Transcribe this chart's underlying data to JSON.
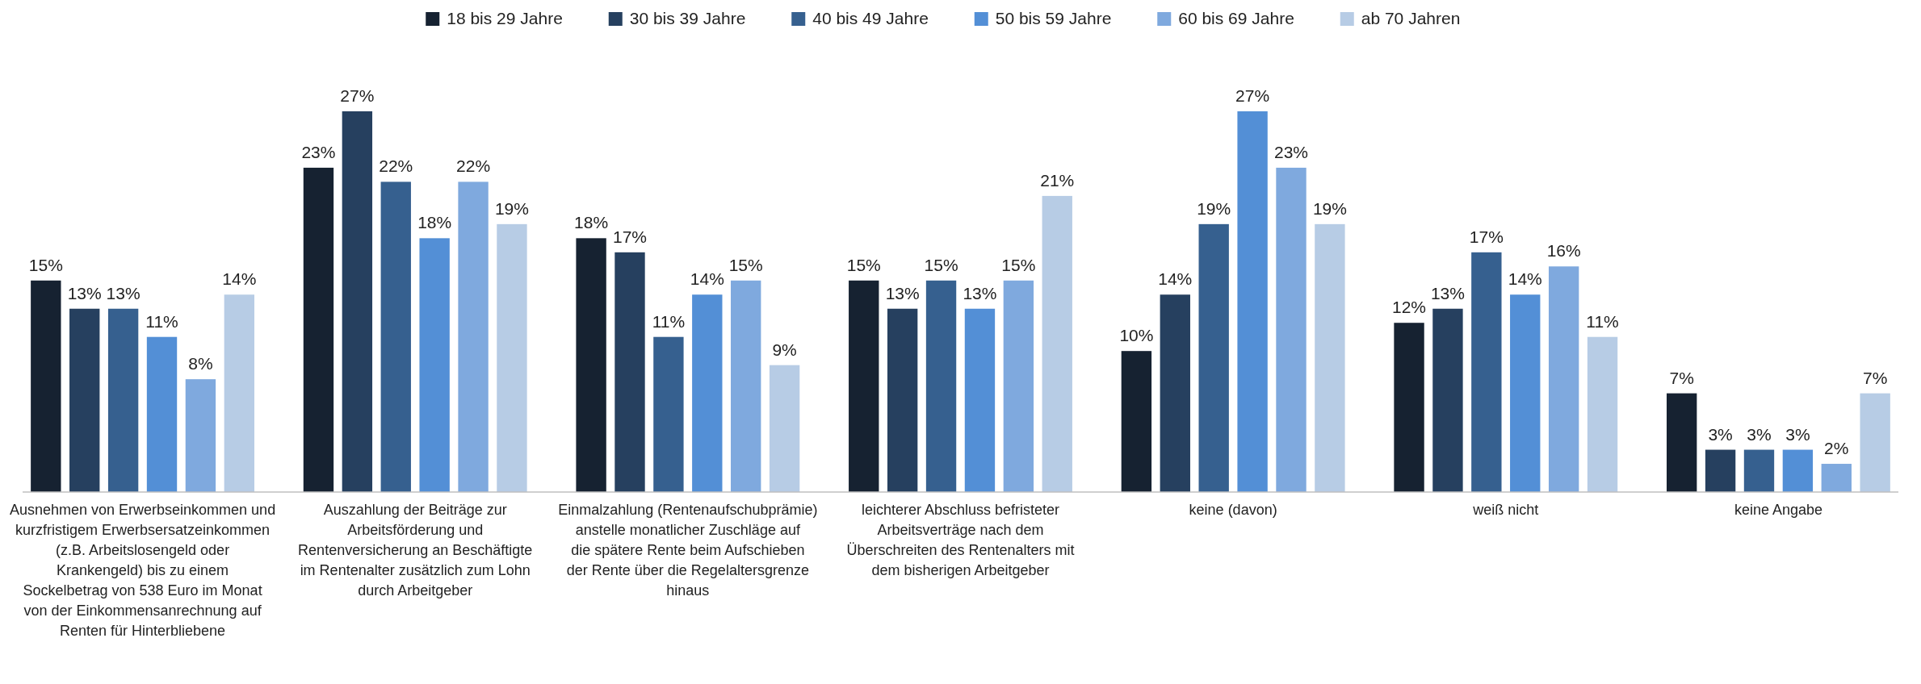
{
  "chart_data": {
    "type": "bar",
    "categories": [
      "Ausnehmen von Erwerbseinkommen und kurzfristigem Erwerbsersatzeinkommen (z.B. Arbeitslosengeld oder Krankengeld) bis zu einem Sockelbetrag von 538 Euro im Monat von der Einkommensanrechnung auf Renten für Hinterbliebene",
      "Auszahlung der Beiträge zur Arbeitsförderung und Rentenversicherung an Beschäftigte im Rentenalter zusätzlich zum Lohn durch Arbeitgeber",
      "Einmalzahlung (Rentenaufschubprämie) anstelle monatlicher Zuschläge auf die spätere Rente beim Aufschieben der Rente über die Regelaltersgrenze hinaus",
      "leichterer Abschluss befristeter Arbeitsverträge nach dem Überschreiten des Rentenalters mit dem bisherigen Arbeitgeber",
      "keine (davon)",
      "weiß nicht",
      "keine Angabe"
    ],
    "series": [
      {
        "name": "18 bis 29 Jahre",
        "color": "#162231",
        "values": [
          15,
          23,
          18,
          15,
          10,
          12,
          7
        ],
        "value_labels": [
          "15%",
          "23%",
          "18%",
          "15%",
          "10%",
          "12%",
          "7%"
        ]
      },
      {
        "name": "30 bis 39 Jahre",
        "color": "#26405f",
        "values": [
          13,
          27,
          17,
          13,
          14,
          13,
          3
        ],
        "value_labels": [
          "13%",
          "27%",
          "17%",
          "13%",
          "14%",
          "13%",
          "3%"
        ]
      },
      {
        "name": "40 bis 49 Jahre",
        "color": "#36608f",
        "values": [
          13,
          22,
          11,
          15,
          19,
          17,
          3
        ],
        "value_labels": [
          "13%",
          "22%",
          "11%",
          "15%",
          "19%",
          "17%",
          "3%"
        ]
      },
      {
        "name": "50 bis 59 Jahre",
        "color": "#538fd6",
        "values": [
          11,
          18,
          14,
          13,
          27,
          14,
          3
        ],
        "value_labels": [
          "11%",
          "18%",
          "14%",
          "13%",
          "27%",
          "14%",
          "3%"
        ]
      },
      {
        "name": "60 bis 69 Jahre",
        "color": "#7fa9de",
        "values": [
          8,
          22,
          15,
          15,
          23,
          16,
          2
        ],
        "value_labels": [
          "8%",
          "22%",
          "15%",
          "15%",
          "23%",
          "16%",
          "2%"
        ]
      },
      {
        "name": "ab 70 Jahren",
        "color": "#b7cce5",
        "values": [
          14,
          19,
          9,
          21,
          19,
          11,
          7
        ],
        "value_labels": [
          "14%",
          "19%",
          "9%",
          "21%",
          "19%",
          "11%",
          "7%"
        ]
      }
    ],
    "legend": "top"
  }
}
